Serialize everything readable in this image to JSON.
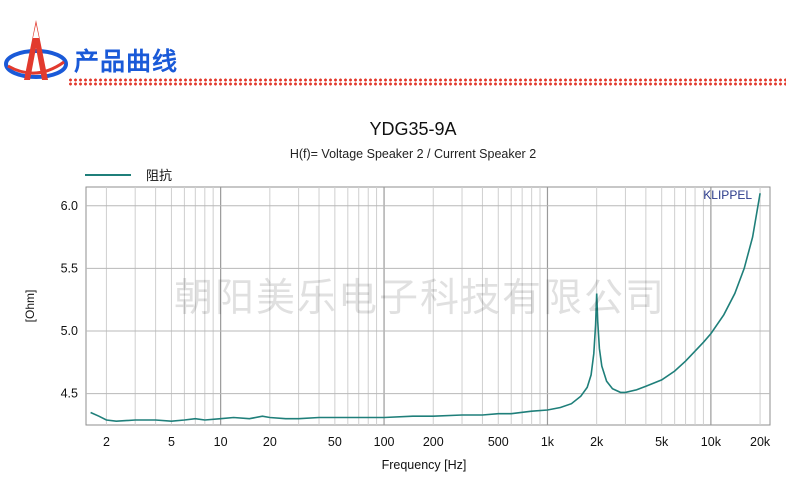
{
  "header": {
    "title": "产品曲线",
    "logo_icon": "red-blue-a-logo-icon"
  },
  "colors": {
    "accent_blue": "#1a5ad8",
    "accent_red": "#e23a2e",
    "curve": "#1f7f7a",
    "grid": "#c8c8c8",
    "plot_border": "#8f8f8f"
  },
  "chart_data": {
    "type": "line",
    "title": "YDG35-9A",
    "subtitle": "H(f)= Voltage Speaker 2 / Current Speaker 2",
    "xlabel": "Frequency [Hz]",
    "ylabel": "[Ohm]",
    "x_scale": "log",
    "xlim": [
      1.5,
      23000
    ],
    "ylim": [
      4.25,
      6.15
    ],
    "grid": true,
    "legend_position": "top-left",
    "annotation": "KLIPPEL",
    "watermark": "朝阳美乐电子科技有限公司",
    "x_ticks": [
      {
        "value": 2,
        "label": "2"
      },
      {
        "value": 5,
        "label": "5"
      },
      {
        "value": 10,
        "label": "10"
      },
      {
        "value": 20,
        "label": "20"
      },
      {
        "value": 50,
        "label": "50"
      },
      {
        "value": 100,
        "label": "100"
      },
      {
        "value": 200,
        "label": "200"
      },
      {
        "value": 500,
        "label": "500"
      },
      {
        "value": 1000,
        "label": "1k"
      },
      {
        "value": 2000,
        "label": "2k"
      },
      {
        "value": 5000,
        "label": "5k"
      },
      {
        "value": 10000,
        "label": "10k"
      },
      {
        "value": 20000,
        "label": "20k"
      }
    ],
    "y_ticks": [
      {
        "value": 4.5,
        "label": "4.5"
      },
      {
        "value": 5.0,
        "label": "5.0"
      },
      {
        "value": 5.5,
        "label": "5.5"
      },
      {
        "value": 6.0,
        "label": "6.0"
      }
    ],
    "series": [
      {
        "name": "阻抗",
        "color": "#1f7f7a",
        "points": [
          [
            1.6,
            4.35
          ],
          [
            1.8,
            4.32
          ],
          [
            2.0,
            4.29
          ],
          [
            2.3,
            4.28
          ],
          [
            3,
            4.29
          ],
          [
            4,
            4.29
          ],
          [
            5,
            4.28
          ],
          [
            6,
            4.29
          ],
          [
            7,
            4.3
          ],
          [
            8,
            4.29
          ],
          [
            10,
            4.3
          ],
          [
            12,
            4.31
          ],
          [
            15,
            4.3
          ],
          [
            18,
            4.32
          ],
          [
            20,
            4.31
          ],
          [
            25,
            4.3
          ],
          [
            30,
            4.3
          ],
          [
            40,
            4.31
          ],
          [
            50,
            4.31
          ],
          [
            70,
            4.31
          ],
          [
            100,
            4.31
          ],
          [
            150,
            4.32
          ],
          [
            200,
            4.32
          ],
          [
            300,
            4.33
          ],
          [
            400,
            4.33
          ],
          [
            500,
            4.34
          ],
          [
            600,
            4.34
          ],
          [
            800,
            4.36
          ],
          [
            1000,
            4.37
          ],
          [
            1200,
            4.39
          ],
          [
            1400,
            4.42
          ],
          [
            1600,
            4.48
          ],
          [
            1750,
            4.55
          ],
          [
            1850,
            4.65
          ],
          [
            1920,
            4.82
          ],
          [
            1970,
            5.05
          ],
          [
            2000,
            5.3
          ],
          [
            2030,
            5.08
          ],
          [
            2080,
            4.86
          ],
          [
            2150,
            4.72
          ],
          [
            2300,
            4.6
          ],
          [
            2500,
            4.54
          ],
          [
            2800,
            4.51
          ],
          [
            3000,
            4.51
          ],
          [
            3500,
            4.53
          ],
          [
            4000,
            4.56
          ],
          [
            5000,
            4.61
          ],
          [
            6000,
            4.68
          ],
          [
            7000,
            4.76
          ],
          [
            8000,
            4.84
          ],
          [
            9000,
            4.91
          ],
          [
            10000,
            4.98
          ],
          [
            12000,
            5.13
          ],
          [
            14000,
            5.3
          ],
          [
            16000,
            5.5
          ],
          [
            18000,
            5.75
          ],
          [
            20000,
            6.1
          ]
        ]
      }
    ]
  }
}
